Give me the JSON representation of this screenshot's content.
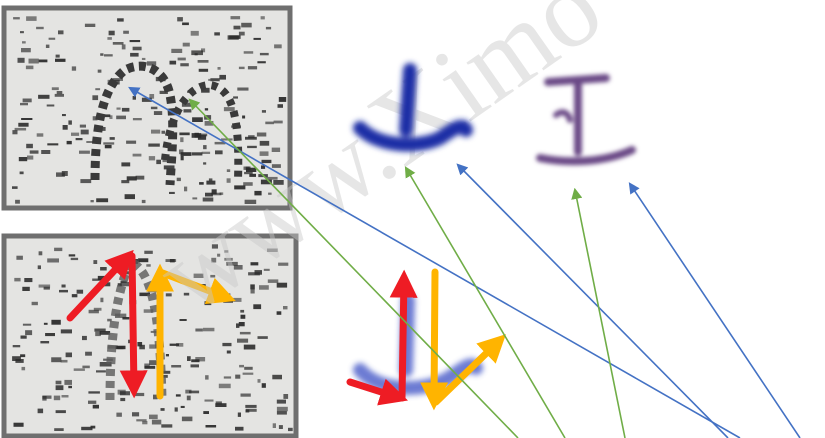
{
  "watermark": "www.Ximo",
  "colors": {
    "background": "#ffffff",
    "panel_border": "#6f6f6f",
    "panel_fill": "#e4e4e2",
    "panel_noise": "#2a2a2a",
    "glyph_blue": "#1e2fa6",
    "glyph_purple": "#6a4a86",
    "stroke_red": "#ee1c24",
    "stroke_orange": "#ffb400",
    "line_blue": "#4472c4",
    "line_green": "#70ad47",
    "watermark": "#c9c9c9"
  },
  "panels": [
    {
      "name": "top-left-seal-fragment",
      "strokes": []
    },
    {
      "name": "bottom-left-seal-fragment",
      "strokes": [
        "red-stroke-arrow",
        "orange-stroke-arrow"
      ]
    }
  ],
  "glyphs": [
    {
      "name": "blue-glyph-top",
      "color": "glyph_blue"
    },
    {
      "name": "purple-glyph-top",
      "color": "glyph_purple"
    },
    {
      "name": "blue-glyph-bottom",
      "color": "glyph_blue",
      "strokes": [
        "red-stroke-arrow",
        "orange-stroke-arrow"
      ]
    }
  ],
  "connector_lines": [
    {
      "name": "blue-line-1",
      "color": "line_blue"
    },
    {
      "name": "green-line-1",
      "color": "line_green"
    },
    {
      "name": "green-line-2",
      "color": "line_green"
    },
    {
      "name": "blue-line-2",
      "color": "line_blue"
    },
    {
      "name": "green-line-3",
      "color": "line_green"
    },
    {
      "name": "blue-line-3",
      "color": "line_blue"
    }
  ]
}
